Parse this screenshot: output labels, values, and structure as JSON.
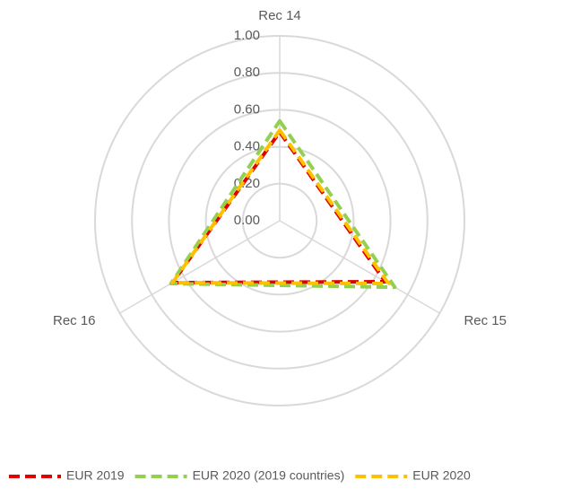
{
  "chart_data": {
    "type": "radar",
    "categories": [
      "Rec 14",
      "Rec 15",
      "Rec 16"
    ],
    "series": [
      {
        "name": "EUR 2019",
        "color": "#e00000",
        "values": [
          0.48,
          0.66,
          0.67
        ]
      },
      {
        "name": "EUR 2020 (2019 countries)",
        "color": "#92d050",
        "values": [
          0.54,
          0.72,
          0.68
        ]
      },
      {
        "name": "EUR 2020",
        "color": "#ffc000",
        "values": [
          0.49,
          0.68,
          0.67
        ]
      }
    ],
    "ylim": [
      0,
      1
    ],
    "yticks": [
      {
        "value": 0,
        "label": "0.00"
      },
      {
        "value": 0.2,
        "label": "0.20"
      },
      {
        "value": 0.4,
        "label": "0.40"
      },
      {
        "value": 0.6,
        "label": "0.60"
      },
      {
        "value": 0.8,
        "label": "0.80"
      },
      {
        "value": 1,
        "label": "1.00"
      }
    ],
    "grid": true
  }
}
